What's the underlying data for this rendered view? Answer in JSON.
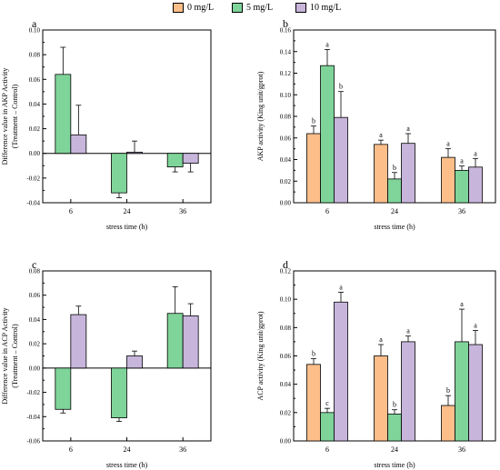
{
  "legend": [
    {
      "label": "0 mg/L",
      "color": "#FDBE8A"
    },
    {
      "label": "5 mg/L",
      "color": "#7FD49A"
    },
    {
      "label": "10 mg/L",
      "color": "#C7B5DB"
    }
  ],
  "chart_data": [
    {
      "type": "bar",
      "panel_letter": "a",
      "categories": [
        "6",
        "24",
        "36"
      ],
      "xlabel": "stress time (h)",
      "ylabel": "Difference value in AKP Activity\n(Treatment – Control)",
      "ylim": [
        -0.04,
        0.1
      ],
      "yticks": [
        "-0.04",
        "-0.02",
        "0.00",
        "0.02",
        "0.04",
        "0.06",
        "0.08",
        "0.10"
      ],
      "zero_line": true,
      "series": [
        {
          "color": "#7FD49A",
          "values": [
            0.064,
            -0.032,
            -0.011
          ],
          "errors": [
            0.022,
            0.004,
            0.004
          ]
        },
        {
          "color": "#C7B5DB",
          "values": [
            0.015,
            0.001,
            -0.008
          ],
          "errors": [
            0.024,
            0.009,
            0.007
          ]
        }
      ]
    },
    {
      "type": "bar",
      "panel_letter": "b",
      "categories": [
        "6",
        "24",
        "36"
      ],
      "xlabel": "stress time (h)",
      "ylabel": "AKP activity (King unit/gprot)",
      "ylim": [
        0.0,
        0.16
      ],
      "yticks": [
        "0.00",
        "0.02",
        "0.04",
        "0.06",
        "0.08",
        "0.10",
        "0.12",
        "0.14",
        "0.16"
      ],
      "zero_line": false,
      "series": [
        {
          "color": "#FDBE8A",
          "values": [
            0.064,
            0.054,
            0.042
          ],
          "errors": [
            0.007,
            0.004,
            0.008
          ],
          "letters": [
            "b",
            "a",
            "a"
          ]
        },
        {
          "color": "#7FD49A",
          "values": [
            0.127,
            0.022,
            0.03
          ],
          "errors": [
            0.015,
            0.006,
            0.004
          ],
          "letters": [
            "a",
            "b",
            "a"
          ]
        },
        {
          "color": "#C7B5DB",
          "values": [
            0.079,
            0.055,
            0.033
          ],
          "errors": [
            0.024,
            0.009,
            0.008
          ],
          "letters": [
            "b",
            "a",
            "a"
          ]
        }
      ]
    },
    {
      "type": "bar",
      "panel_letter": "c",
      "categories": [
        "6",
        "24",
        "36"
      ],
      "xlabel": "stress time (h)",
      "ylabel": "Difference value in ACP Activity\n(Treatment – Control)",
      "ylim": [
        -0.06,
        0.08
      ],
      "yticks": [
        "-0.06",
        "-0.04",
        "-0.02",
        "0.00",
        "0.02",
        "0.04",
        "0.06",
        "0.08"
      ],
      "zero_line": true,
      "series": [
        {
          "color": "#7FD49A",
          "values": [
            -0.034,
            -0.041,
            0.045
          ],
          "errors": [
            0.003,
            0.003,
            0.022
          ]
        },
        {
          "color": "#C7B5DB",
          "values": [
            0.044,
            0.01,
            0.043
          ],
          "errors": [
            0.007,
            0.004,
            0.01
          ]
        }
      ]
    },
    {
      "type": "bar",
      "panel_letter": "d",
      "categories": [
        "6",
        "24",
        "36"
      ],
      "xlabel": "stress time (h)",
      "ylabel": "ACP activity (King unit/gprot)",
      "ylim": [
        0.0,
        0.12
      ],
      "yticks": [
        "0.00",
        "0.02",
        "0.04",
        "0.06",
        "0.08",
        "0.10",
        "0.12"
      ],
      "zero_line": false,
      "series": [
        {
          "color": "#FDBE8A",
          "values": [
            0.054,
            0.06,
            0.025
          ],
          "errors": [
            0.004,
            0.008,
            0.007
          ],
          "letters": [
            "b",
            "a",
            "b"
          ]
        },
        {
          "color": "#7FD49A",
          "values": [
            0.02,
            0.019,
            0.07
          ],
          "errors": [
            0.003,
            0.003,
            0.023
          ],
          "letters": [
            "c",
            "b",
            "a"
          ]
        },
        {
          "color": "#C7B5DB",
          "values": [
            0.098,
            0.07,
            0.068
          ],
          "errors": [
            0.007,
            0.004,
            0.01
          ],
          "letters": [
            "a",
            "a",
            "a"
          ]
        }
      ]
    }
  ]
}
